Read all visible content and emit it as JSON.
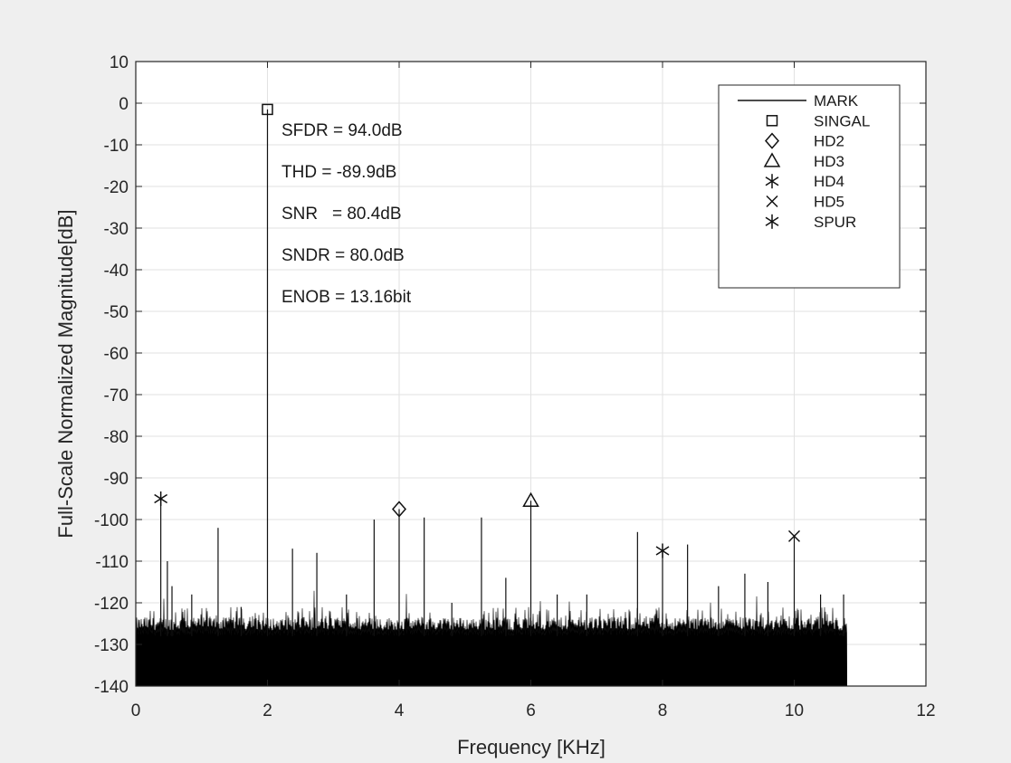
{
  "chart_data": {
    "type": "line",
    "title": "",
    "xlabel": "Frequency [KHz]",
    "ylabel": "Full-Scale Normalized Magnitude[dB]",
    "xlim": [
      0,
      12
    ],
    "ylim": [
      -140,
      10
    ],
    "xticks": [
      0,
      2,
      4,
      6,
      8,
      10,
      12
    ],
    "yticks": [
      10,
      0,
      -10,
      -20,
      -30,
      -40,
      -50,
      -60,
      -70,
      -80,
      -90,
      -100,
      -110,
      -120,
      -130,
      -140
    ],
    "grid": true,
    "legend_position": "top-right",
    "legend": [
      {
        "label": "MARK",
        "marker": "line"
      },
      {
        "label": "SINGAL",
        "marker": "square"
      },
      {
        "label": "HD2",
        "marker": "diamond"
      },
      {
        "label": "HD3",
        "marker": "triangle"
      },
      {
        "label": "HD4",
        "marker": "asterisk"
      },
      {
        "label": "HD5",
        "marker": "x"
      },
      {
        "label": "SPUR",
        "marker": "asterisk"
      }
    ],
    "annotations": [
      "SFDR = 94.0dB",
      "THD = -89.9dB",
      "SNR   = 80.4dB",
      "SNDR = 80.0dB",
      "ENOB = 13.16bit"
    ],
    "noise_floor": {
      "x_range": [
        0,
        10.8
      ],
      "level_dB": -128,
      "color": "#000000"
    },
    "markers": [
      {
        "name": "SINGAL",
        "marker": "square",
        "x": 2.0,
        "y": -1.5
      },
      {
        "name": "HD2",
        "marker": "diamond",
        "x": 4.0,
        "y": -97.5
      },
      {
        "name": "HD3",
        "marker": "triangle",
        "x": 6.0,
        "y": -95.5
      },
      {
        "name": "HD4",
        "marker": "asterisk",
        "x": 8.0,
        "y": -107.5
      },
      {
        "name": "HD5",
        "marker": "x",
        "x": 10.0,
        "y": -104
      },
      {
        "name": "SPUR",
        "marker": "asterisk",
        "x": 0.38,
        "y": -95
      }
    ],
    "spurs": [
      {
        "x": 0.38,
        "y": -95
      },
      {
        "x": 0.48,
        "y": -110
      },
      {
        "x": 0.55,
        "y": -116
      },
      {
        "x": 0.85,
        "y": -118
      },
      {
        "x": 1.25,
        "y": -102
      },
      {
        "x": 1.6,
        "y": -121
      },
      {
        "x": 2.0,
        "y": -1.5
      },
      {
        "x": 2.38,
        "y": -107
      },
      {
        "x": 2.75,
        "y": -108
      },
      {
        "x": 3.2,
        "y": -118
      },
      {
        "x": 3.62,
        "y": -100
      },
      {
        "x": 4.0,
        "y": -97.5
      },
      {
        "x": 4.38,
        "y": -99.5
      },
      {
        "x": 4.8,
        "y": -120
      },
      {
        "x": 5.25,
        "y": -99.5
      },
      {
        "x": 5.62,
        "y": -114
      },
      {
        "x": 6.0,
        "y": -95.5
      },
      {
        "x": 6.4,
        "y": -118
      },
      {
        "x": 6.85,
        "y": -118
      },
      {
        "x": 7.62,
        "y": -103
      },
      {
        "x": 8.0,
        "y": -107.5
      },
      {
        "x": 8.38,
        "y": -106
      },
      {
        "x": 8.85,
        "y": -116
      },
      {
        "x": 9.25,
        "y": -113
      },
      {
        "x": 9.6,
        "y": -115
      },
      {
        "x": 10.0,
        "y": -104
      },
      {
        "x": 10.4,
        "y": -118
      },
      {
        "x": 10.75,
        "y": -118
      }
    ]
  }
}
